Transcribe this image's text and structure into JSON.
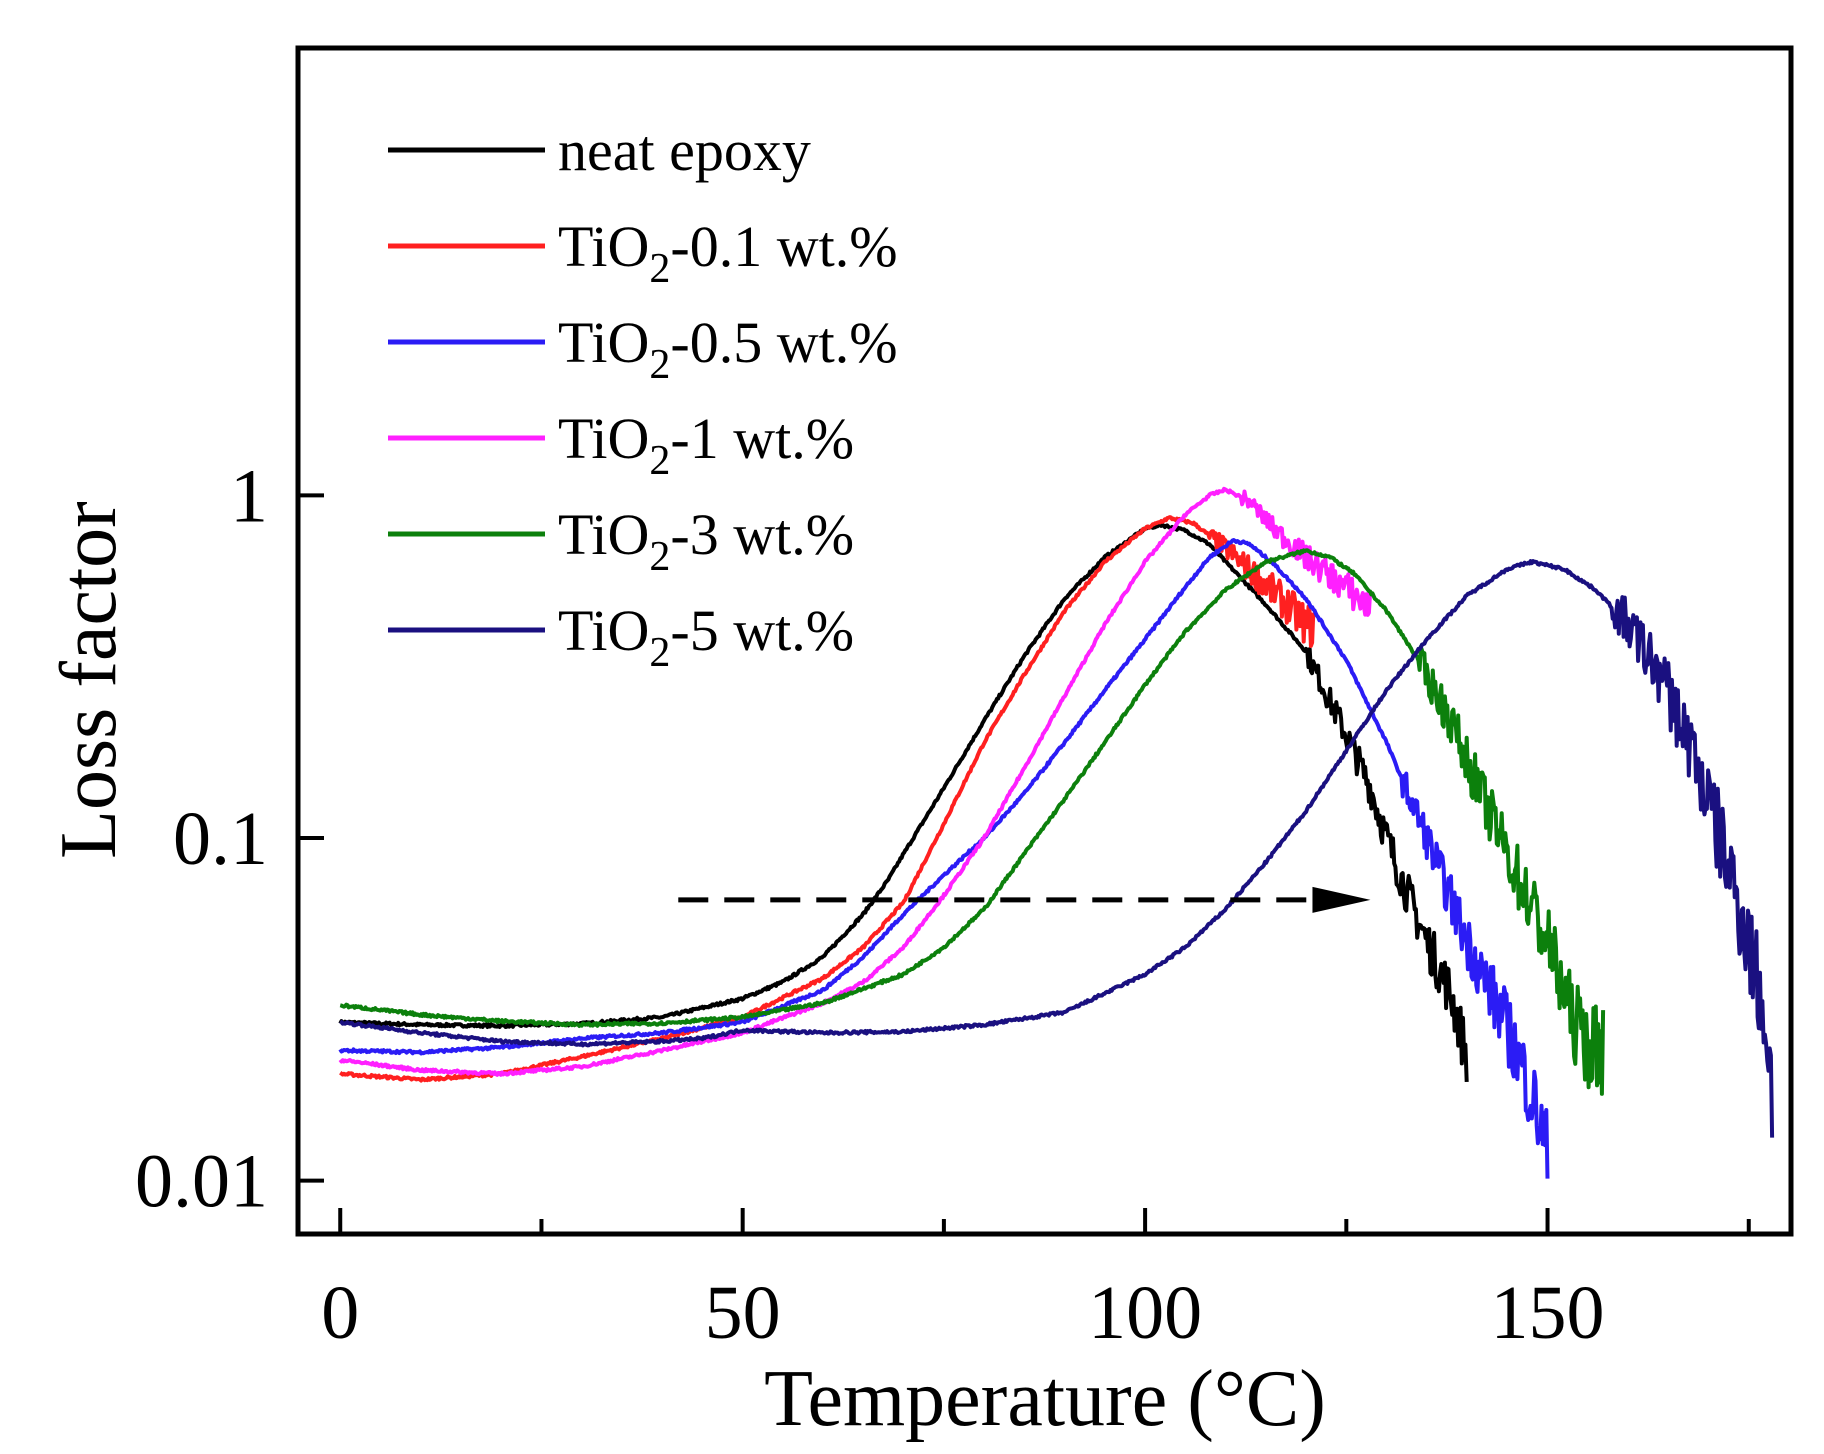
{
  "chart_data": {
    "type": "line",
    "title": "",
    "xlabel": "Temperature (°C)",
    "ylabel": "Loss factor",
    "xlim": [
      -5,
      180
    ],
    "ylim_log10": [
      -2.15,
      1.3
    ],
    "yscale": "log",
    "xticks": [
      {
        "value": 0,
        "label": "0"
      },
      {
        "value": 50,
        "label": "50"
      },
      {
        "value": 100,
        "label": "100"
      },
      {
        "value": 150,
        "label": "150"
      }
    ],
    "x_minor_ticks": [
      25,
      75,
      125,
      175
    ],
    "yticks": [
      {
        "value": 1,
        "label": "1"
      },
      {
        "value": 0.1,
        "label": "0.1"
      },
      {
        "value": 0.01,
        "label": "0.01"
      }
    ],
    "legend_position": "top-left",
    "series": [
      {
        "name": "neat epoxy",
        "legend_main": "neat epoxy",
        "legend_sub": "",
        "legend_tail": "",
        "color": "#000000",
        "noise": 0.08,
        "noise_start": 120,
        "points": [
          [
            0,
            0.029
          ],
          [
            10,
            0.0285
          ],
          [
            20,
            0.0283
          ],
          [
            30,
            0.0287
          ],
          [
            40,
            0.03
          ],
          [
            50,
            0.034
          ],
          [
            55,
            0.038
          ],
          [
            60,
            0.045
          ],
          [
            65,
            0.06
          ],
          [
            68,
            0.075
          ],
          [
            70,
            0.09
          ],
          [
            75,
            0.14
          ],
          [
            80,
            0.22
          ],
          [
            85,
            0.34
          ],
          [
            90,
            0.5
          ],
          [
            95,
            0.66
          ],
          [
            100,
            0.8
          ],
          [
            102,
            0.82
          ],
          [
            105,
            0.79
          ],
          [
            108,
            0.72
          ],
          [
            110,
            0.64
          ],
          [
            115,
            0.48
          ],
          [
            120,
            0.35
          ],
          [
            125,
            0.2
          ],
          [
            128,
            0.14
          ],
          [
            130,
            0.1
          ],
          [
            133,
            0.065
          ],
          [
            135,
            0.05
          ],
          [
            138,
            0.035
          ],
          [
            140,
            0.023
          ]
        ]
      },
      {
        "name": "TiO2-0.1 wt.%",
        "legend_main": "TiO",
        "legend_sub": "2",
        "legend_tail": "-0.1 wt.%",
        "color": "#ff2020",
        "noise": 0.06,
        "noise_start": 108,
        "points": [
          [
            0,
            0.0205
          ],
          [
            10,
            0.0197
          ],
          [
            20,
            0.0205
          ],
          [
            30,
            0.023
          ],
          [
            40,
            0.026
          ],
          [
            50,
            0.03
          ],
          [
            60,
            0.039
          ],
          [
            65,
            0.048
          ],
          [
            70,
            0.065
          ],
          [
            75,
            0.11
          ],
          [
            80,
            0.19
          ],
          [
            85,
            0.3
          ],
          [
            90,
            0.46
          ],
          [
            95,
            0.64
          ],
          [
            100,
            0.8
          ],
          [
            103,
            0.86
          ],
          [
            106,
            0.83
          ],
          [
            110,
            0.7
          ],
          [
            115,
            0.55
          ],
          [
            118,
            0.47
          ],
          [
            120,
            0.42
          ],
          [
            121,
            0.41
          ]
        ]
      },
      {
        "name": "TiO2-0.5 wt.%",
        "legend_main": "TiO",
        "legend_sub": "2",
        "legend_tail": "-0.5 wt.%",
        "color": "#2b1cf5",
        "noise": 0.12,
        "noise_start": 132,
        "points": [
          [
            0,
            0.024
          ],
          [
            10,
            0.0237
          ],
          [
            20,
            0.0245
          ],
          [
            30,
            0.026
          ],
          [
            40,
            0.027
          ],
          [
            50,
            0.029
          ],
          [
            60,
            0.036
          ],
          [
            65,
            0.045
          ],
          [
            70,
            0.06
          ],
          [
            75,
            0.078
          ],
          [
            80,
            0.1
          ],
          [
            85,
            0.135
          ],
          [
            90,
            0.19
          ],
          [
            95,
            0.27
          ],
          [
            100,
            0.38
          ],
          [
            105,
            0.54
          ],
          [
            108,
            0.66
          ],
          [
            111,
            0.74
          ],
          [
            113,
            0.72
          ],
          [
            116,
            0.63
          ],
          [
            120,
            0.5
          ],
          [
            125,
            0.33
          ],
          [
            130,
            0.19
          ],
          [
            135,
            0.1
          ],
          [
            140,
            0.05
          ],
          [
            145,
            0.028
          ],
          [
            148,
            0.018
          ],
          [
            150,
            0.012
          ]
        ]
      },
      {
        "name": "TiO2-1 wt.%",
        "legend_main": "TiO",
        "legend_sub": "2",
        "legend_tail": "-1 wt.%",
        "color": "#ff20ff",
        "noise": 0.05,
        "noise_start": 112,
        "points": [
          [
            0,
            0.0225
          ],
          [
            10,
            0.021
          ],
          [
            20,
            0.0205
          ],
          [
            30,
            0.0215
          ],
          [
            40,
            0.024
          ],
          [
            50,
            0.027
          ],
          [
            60,
            0.033
          ],
          [
            65,
            0.038
          ],
          [
            70,
            0.048
          ],
          [
            75,
            0.068
          ],
          [
            80,
            0.1
          ],
          [
            85,
            0.16
          ],
          [
            90,
            0.26
          ],
          [
            95,
            0.42
          ],
          [
            100,
            0.64
          ],
          [
            105,
            0.88
          ],
          [
            108,
            1.0
          ],
          [
            110,
            1.04
          ],
          [
            113,
            0.96
          ],
          [
            116,
            0.8
          ],
          [
            120,
            0.66
          ],
          [
            124,
            0.56
          ],
          [
            128,
            0.47
          ]
        ]
      },
      {
        "name": "TiO2-3 wt.%",
        "legend_main": "TiO",
        "legend_sub": "2",
        "legend_tail": "-3 wt.%",
        "color": "#0c800c",
        "noise": 0.13,
        "noise_start": 134,
        "points": [
          [
            0,
            0.0325
          ],
          [
            10,
            0.0305
          ],
          [
            20,
            0.0292
          ],
          [
            30,
            0.0285
          ],
          [
            40,
            0.0288
          ],
          [
            50,
            0.03
          ],
          [
            60,
            0.033
          ],
          [
            70,
            0.04
          ],
          [
            75,
            0.048
          ],
          [
            80,
            0.062
          ],
          [
            85,
            0.09
          ],
          [
            90,
            0.13
          ],
          [
            95,
            0.19
          ],
          [
            100,
            0.28
          ],
          [
            105,
            0.4
          ],
          [
            110,
            0.53
          ],
          [
            115,
            0.64
          ],
          [
            120,
            0.69
          ],
          [
            123,
            0.66
          ],
          [
            126,
            0.59
          ],
          [
            130,
            0.46
          ],
          [
            134,
            0.33
          ],
          [
            138,
            0.22
          ],
          [
            142,
            0.13
          ],
          [
            146,
            0.08
          ],
          [
            150,
            0.05
          ],
          [
            153,
            0.03
          ],
          [
            155,
            0.025
          ],
          [
            157,
            0.024
          ]
        ]
      },
      {
        "name": "TiO2-5 wt.%",
        "legend_main": "TiO",
        "legend_sub": "2",
        "legend_tail": "-5 wt.%",
        "color": "#1a1080",
        "noise": 0.16,
        "noise_start": 158,
        "points": [
          [
            0,
            0.029
          ],
          [
            10,
            0.027
          ],
          [
            20,
            0.0255
          ],
          [
            30,
            0.025
          ],
          [
            40,
            0.0255
          ],
          [
            45,
            0.026
          ],
          [
            50,
            0.0275
          ],
          [
            60,
            0.027
          ],
          [
            70,
            0.0272
          ],
          [
            80,
            0.0285
          ],
          [
            90,
            0.031
          ],
          [
            100,
            0.04
          ],
          [
            105,
            0.048
          ],
          [
            110,
            0.062
          ],
          [
            115,
            0.085
          ],
          [
            120,
            0.12
          ],
          [
            125,
            0.18
          ],
          [
            130,
            0.27
          ],
          [
            135,
            0.38
          ],
          [
            140,
            0.51
          ],
          [
            145,
            0.61
          ],
          [
            148,
            0.64
          ],
          [
            152,
            0.61
          ],
          [
            156,
            0.53
          ],
          [
            160,
            0.42
          ],
          [
            164,
            0.3
          ],
          [
            168,
            0.18
          ],
          [
            172,
            0.09
          ],
          [
            175,
            0.05
          ],
          [
            177,
            0.03
          ],
          [
            178,
            0.017
          ]
        ]
      }
    ],
    "annotations": [
      {
        "type": "dashed-arrow",
        "x_start": 42,
        "x_end": 128,
        "y": 0.066
      }
    ]
  }
}
